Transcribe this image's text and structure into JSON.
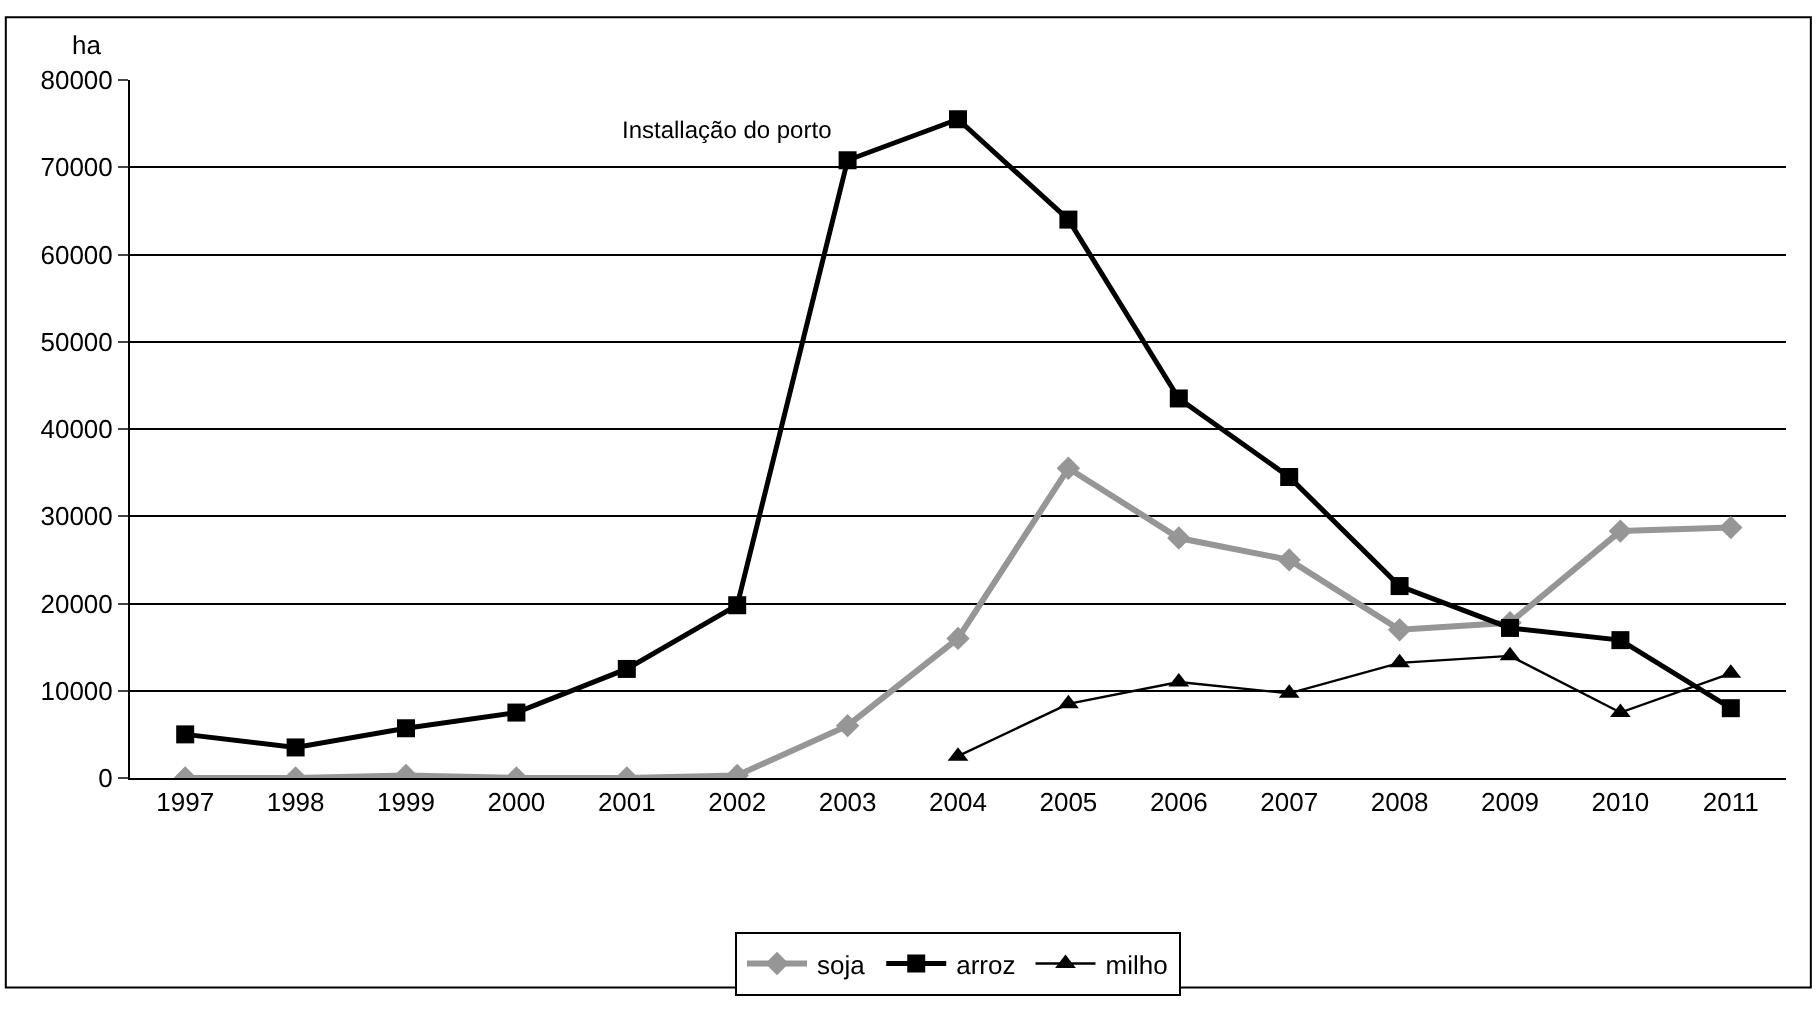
{
  "chart_data": {
    "type": "line",
    "ylabel": "ha",
    "categories": [
      "1997",
      "1998",
      "1999",
      "2000",
      "2001",
      "2002",
      "2003",
      "2004",
      "2005",
      "2006",
      "2007",
      "2008",
      "2009",
      "2010",
      "2011"
    ],
    "series": [
      {
        "name": "soja",
        "color": "#969696",
        "marker": "diamond",
        "values": [
          0,
          0,
          300,
          0,
          0,
          300,
          6000,
          16000,
          35500,
          27500,
          25000,
          17000,
          17800,
          28300,
          28700
        ]
      },
      {
        "name": "arroz",
        "color": "#000000",
        "marker": "square",
        "values": [
          5000,
          3500,
          5700,
          7500,
          12500,
          19800,
          70800,
          75500,
          64000,
          43500,
          34500,
          22000,
          17200,
          15800,
          8000
        ]
      },
      {
        "name": "milho",
        "color": "#000000",
        "marker": "triangle",
        "values": [
          null,
          null,
          null,
          null,
          null,
          null,
          null,
          2500,
          8500,
          11000,
          9700,
          13200,
          14000,
          7500,
          12000
        ]
      }
    ],
    "ylim": [
      0,
      80000
    ],
    "yticks": [
      0,
      10000,
      20000,
      30000,
      40000,
      50000,
      60000,
      70000,
      80000
    ],
    "grid": "y",
    "legend": "bottom",
    "line_style": "solid",
    "annotations": [
      {
        "text": "Installação do porto",
        "x": "2003",
        "y": 70800
      }
    ]
  }
}
